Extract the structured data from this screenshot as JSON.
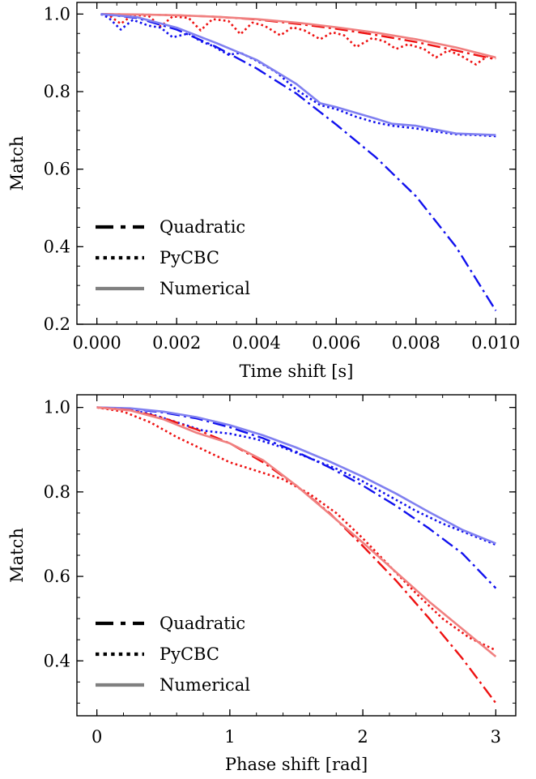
{
  "chart_data": [
    {
      "type": "line",
      "xlabel": "Time shift [s]",
      "ylabel": "Match",
      "xlim": [
        -0.0005,
        0.0105
      ],
      "ylim": [
        0.2,
        1.03
      ],
      "xticks": [
        0.0,
        0.002,
        0.004,
        0.006,
        0.008,
        0.01
      ],
      "xtick_labels": [
        "0.000",
        "0.002",
        "0.004",
        "0.006",
        "0.008",
        "0.010"
      ],
      "yticks": [
        0.2,
        0.4,
        0.6,
        0.8,
        1.0
      ],
      "ytick_labels": [
        "0.2",
        "0.4",
        "0.6",
        "0.8",
        "1.0"
      ],
      "grid": false,
      "legend_position": "lower-left",
      "legend": [
        {
          "label": "Quadratic",
          "style": "dashdot",
          "color": "#000000"
        },
        {
          "label": "PyCBC",
          "style": "dotted",
          "color": "#000000"
        },
        {
          "label": "Numerical",
          "style": "solid",
          "color": "#808080"
        }
      ],
      "series": [
        {
          "group": "red",
          "style": "dashdot",
          "color": "#ee1111",
          "x": [
            0.0001,
            0.001,
            0.002,
            0.003,
            0.004,
            0.005,
            0.006,
            0.007,
            0.008,
            0.009,
            0.01
          ],
          "y": [
            1.0,
            0.999,
            0.997,
            0.993,
            0.986,
            0.975,
            0.962,
            0.946,
            0.928,
            0.906,
            0.883
          ]
        },
        {
          "group": "red",
          "style": "dotted",
          "color": "#ee1111",
          "x": [
            0.0001,
            0.0003,
            0.0006,
            0.0009,
            0.0013,
            0.0016,
            0.0019,
            0.0023,
            0.0026,
            0.0029,
            0.0033,
            0.0036,
            0.0039,
            0.0042,
            0.0046,
            0.0049,
            0.0052,
            0.0056,
            0.0059,
            0.0062,
            0.0065,
            0.0069,
            0.0072,
            0.0075,
            0.0078,
            0.0082,
            0.0085,
            0.0088,
            0.0091,
            0.0095,
            0.0098,
            0.01
          ],
          "y": [
            1.0,
            0.997,
            0.975,
            0.998,
            0.995,
            0.968,
            0.994,
            0.99,
            0.958,
            0.987,
            0.982,
            0.948,
            0.978,
            0.97,
            0.945,
            0.966,
            0.958,
            0.935,
            0.953,
            0.945,
            0.915,
            0.938,
            0.93,
            0.91,
            0.922,
            0.91,
            0.888,
            0.906,
            0.894,
            0.87,
            0.892,
            0.885
          ]
        },
        {
          "group": "red",
          "style": "solid",
          "color": "#f08080",
          "x": [
            0.0001,
            0.001,
            0.002,
            0.003,
            0.004,
            0.005,
            0.006,
            0.007,
            0.008,
            0.009,
            0.01
          ],
          "y": [
            1.0,
            0.999,
            0.997,
            0.993,
            0.987,
            0.978,
            0.966,
            0.952,
            0.935,
            0.914,
            0.888
          ]
        },
        {
          "group": "blue",
          "style": "dashdot",
          "color": "#1111ee",
          "x": [
            0.0001,
            0.001,
            0.002,
            0.003,
            0.004,
            0.005,
            0.006,
            0.007,
            0.008,
            0.009,
            0.01
          ],
          "y": [
            1.0,
            0.99,
            0.96,
            0.915,
            0.86,
            0.795,
            0.715,
            0.63,
            0.53,
            0.4,
            0.235
          ]
        },
        {
          "group": "blue",
          "style": "dotted",
          "color": "#1111ee",
          "x": [
            0.0001,
            0.0003,
            0.0006,
            0.0009,
            0.0013,
            0.0016,
            0.0019,
            0.0023,
            0.0026,
            0.0029,
            0.0033,
            0.0036,
            0.004,
            0.0045,
            0.005,
            0.0056,
            0.006,
            0.0065,
            0.007,
            0.0074,
            0.008,
            0.0085,
            0.009,
            0.0095,
            0.01
          ],
          "y": [
            1.0,
            0.99,
            0.96,
            0.985,
            0.97,
            0.965,
            0.94,
            0.95,
            0.93,
            0.918,
            0.895,
            0.9,
            0.88,
            0.85,
            0.805,
            0.765,
            0.755,
            0.735,
            0.72,
            0.712,
            0.705,
            0.697,
            0.69,
            0.688,
            0.685
          ]
        },
        {
          "group": "blue",
          "style": "solid",
          "color": "#8080f0",
          "x": [
            0.0001,
            0.001,
            0.002,
            0.003,
            0.004,
            0.005,
            0.0056,
            0.006,
            0.007,
            0.0074,
            0.008,
            0.009,
            0.01
          ],
          "y": [
            1.0,
            0.992,
            0.965,
            0.925,
            0.882,
            0.82,
            0.77,
            0.76,
            0.73,
            0.717,
            0.712,
            0.692,
            0.688
          ]
        }
      ]
    },
    {
      "type": "line",
      "xlabel": "Phase shift [rad]",
      "ylabel": "Match",
      "xlim": [
        -0.15,
        3.15
      ],
      "ylim": [
        0.27,
        1.03
      ],
      "xticks": [
        0,
        1,
        2,
        3
      ],
      "xtick_labels": [
        "0",
        "1",
        "2",
        "3"
      ],
      "yticks": [
        0.4,
        0.6,
        0.8,
        1.0
      ],
      "ytick_labels": [
        "0.4",
        "0.6",
        "0.8",
        "1.0"
      ],
      "grid": false,
      "legend_position": "lower-left",
      "legend": [
        {
          "label": "Quadratic",
          "style": "dashdot",
          "color": "#000000"
        },
        {
          "label": "PyCBC",
          "style": "dotted",
          "color": "#000000"
        },
        {
          "label": "Numerical",
          "style": "solid",
          "color": "#808080"
        }
      ],
      "series": [
        {
          "group": "blue",
          "style": "dashdot",
          "color": "#1111ee",
          "x": [
            0,
            0.25,
            0.5,
            0.75,
            1.0,
            1.25,
            1.5,
            1.75,
            2.0,
            2.25,
            2.5,
            2.75,
            3.0
          ],
          "y": [
            1.0,
            0.997,
            0.988,
            0.974,
            0.953,
            0.927,
            0.895,
            0.858,
            0.815,
            0.767,
            0.713,
            0.654,
            0.572
          ]
        },
        {
          "group": "blue",
          "style": "dotted",
          "color": "#1111ee",
          "x": [
            0,
            0.2,
            0.4,
            0.6,
            0.8,
            1.0,
            1.2,
            1.4,
            1.6,
            1.8,
            2.0,
            2.2,
            2.4,
            2.6,
            2.8,
            3.0
          ],
          "y": [
            1.0,
            0.997,
            0.985,
            0.965,
            0.945,
            0.938,
            0.925,
            0.905,
            0.88,
            0.855,
            0.825,
            0.79,
            0.755,
            0.725,
            0.7,
            0.675
          ]
        },
        {
          "group": "blue",
          "style": "solid",
          "color": "#8080f0",
          "x": [
            0,
            0.25,
            0.5,
            0.75,
            1.0,
            1.25,
            1.5,
            1.75,
            2.0,
            2.25,
            2.5,
            2.75,
            3.0
          ],
          "y": [
            1.0,
            0.998,
            0.99,
            0.977,
            0.958,
            0.934,
            0.905,
            0.872,
            0.836,
            0.796,
            0.752,
            0.71,
            0.678
          ]
        },
        {
          "group": "red",
          "style": "dashdot",
          "color": "#ee1111",
          "x": [
            0,
            0.25,
            0.5,
            0.75,
            1.0,
            1.25,
            1.5,
            1.75,
            2.0,
            2.25,
            2.5,
            2.75,
            3.0
          ],
          "y": [
            1.0,
            0.994,
            0.975,
            0.948,
            0.915,
            0.87,
            0.815,
            0.75,
            0.672,
            0.59,
            0.5,
            0.405,
            0.3
          ]
        },
        {
          "group": "red",
          "style": "dotted",
          "color": "#ee1111",
          "x": [
            0,
            0.2,
            0.4,
            0.6,
            0.8,
            1.0,
            1.2,
            1.4,
            1.6,
            1.8,
            2.0,
            2.2,
            2.4,
            2.6,
            2.8,
            3.0
          ],
          "y": [
            1.0,
            0.99,
            0.965,
            0.93,
            0.9,
            0.87,
            0.85,
            0.83,
            0.795,
            0.75,
            0.69,
            0.625,
            0.56,
            0.5,
            0.455,
            0.425
          ]
        },
        {
          "group": "red",
          "style": "solid",
          "color": "#f08080",
          "x": [
            0,
            0.25,
            0.5,
            0.75,
            1.0,
            1.25,
            1.5,
            1.75,
            2.0,
            2.25,
            2.5,
            2.75,
            3.0
          ],
          "y": [
            1.0,
            0.993,
            0.972,
            0.94,
            0.915,
            0.875,
            0.815,
            0.748,
            0.68,
            0.61,
            0.54,
            0.475,
            0.41
          ]
        }
      ]
    }
  ]
}
